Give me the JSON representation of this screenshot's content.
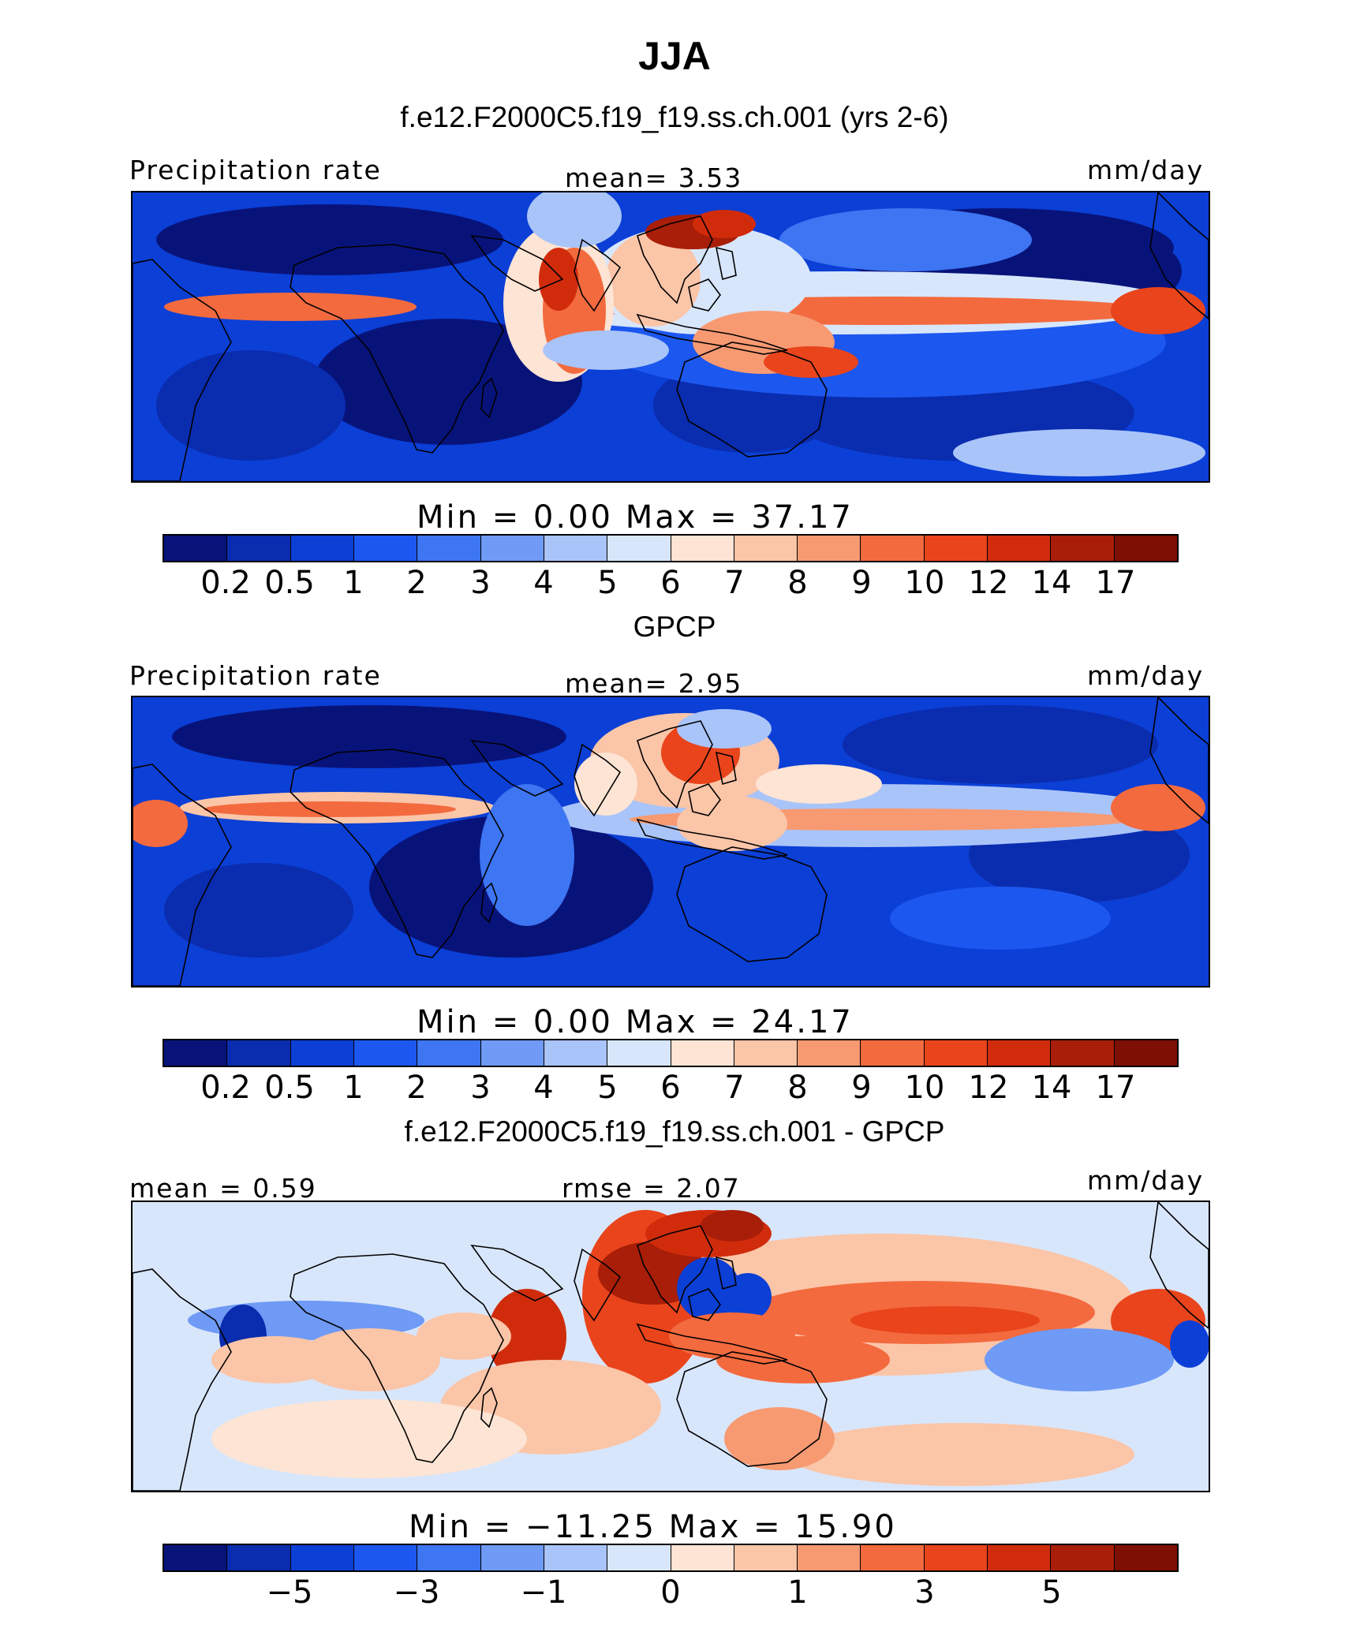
{
  "figure": {
    "title": "JJA",
    "model_subtitle": "f.e12.F2000C5.f19_f19.ss.ch.001 (yrs 2-6)"
  },
  "colors": {
    "abs": [
      "#08137a",
      "#0a2cae",
      "#0b3fd6",
      "#1c57ef",
      "#3d75f2",
      "#6f9af5",
      "#a9c4f8",
      "#d8e6fb",
      "#fde4d4",
      "#fbc5a8",
      "#f79a72",
      "#f36a3e",
      "#e9441b",
      "#d02c0c",
      "#a81e08",
      "#7d0f04"
    ],
    "diff": [
      "#08137a",
      "#0a2cae",
      "#0b3fd6",
      "#1c57ef",
      "#3d75f2",
      "#6f9af5",
      "#a9c4f8",
      "#d8e6fb",
      "#fde4d4",
      "#fbc5a8",
      "#f79a72",
      "#f36a3e",
      "#e9441b",
      "#d02c0c",
      "#a81e08",
      "#7d0f04"
    ],
    "coast": "#000000"
  },
  "panels": [
    {
      "id": "model",
      "header_text": "",
      "left_label": "Precipitation rate",
      "center_label": "mean=   3.53",
      "right_label": "mm/day",
      "min_max": "Min  =    0.00  Max  =   37.17",
      "colorbar_ticks": [
        "0.2",
        "0.5",
        "1",
        "2",
        "3",
        "4",
        "5",
        "6",
        "7",
        "8",
        "9",
        "10",
        "12",
        "14",
        "17"
      ]
    },
    {
      "id": "obs",
      "header_text": "GPCP",
      "left_label": "Precipitation rate",
      "center_label": "mean=   2.95",
      "right_label": "mm/day",
      "min_max": "Min  =    0.00  Max  =   24.17",
      "colorbar_ticks": [
        "0.2",
        "0.5",
        "1",
        "2",
        "3",
        "4",
        "5",
        "6",
        "7",
        "8",
        "9",
        "10",
        "12",
        "14",
        "17"
      ]
    },
    {
      "id": "diff",
      "header_text": "f.e12.F2000C5.f19_f19.ss.ch.001 - GPCP",
      "left_label": "mean =   0.59",
      "center_label": "rmse  =   2.07",
      "right_label": "mm/day",
      "min_max": "Min  = −11.25  Max  =   15.90",
      "colorbar_ticks": [
        "−5",
        "−3",
        "−1",
        "0",
        "1",
        "3",
        "5"
      ]
    }
  ],
  "chart_data": [
    {
      "type": "heatmap",
      "title": "JJA",
      "subtitle": "f.e12.F2000C5.f19_f19.ss.ch.001 (yrs 2-6)",
      "variable": "Precipitation rate",
      "units": "mm/day",
      "mean": 3.53,
      "min": 0.0,
      "max": 37.17,
      "contour_levels": [
        0.2,
        0.5,
        1,
        2,
        3,
        4,
        5,
        6,
        7,
        8,
        9,
        10,
        12,
        14,
        17
      ]
    },
    {
      "type": "heatmap",
      "title": "GPCP",
      "variable": "Precipitation rate",
      "units": "mm/day",
      "mean": 2.95,
      "min": 0.0,
      "max": 24.17,
      "contour_levels": [
        0.2,
        0.5,
        1,
        2,
        3,
        4,
        5,
        6,
        7,
        8,
        9,
        10,
        12,
        14,
        17
      ]
    },
    {
      "type": "heatmap",
      "title": "f.e12.F2000C5.f19_f19.ss.ch.001 - GPCP",
      "units": "mm/day",
      "mean": 0.59,
      "rmse": 2.07,
      "min": -11.25,
      "max": 15.9,
      "colorbar_labels": [
        -5,
        -3,
        -1,
        0,
        1,
        3,
        5
      ]
    }
  ]
}
